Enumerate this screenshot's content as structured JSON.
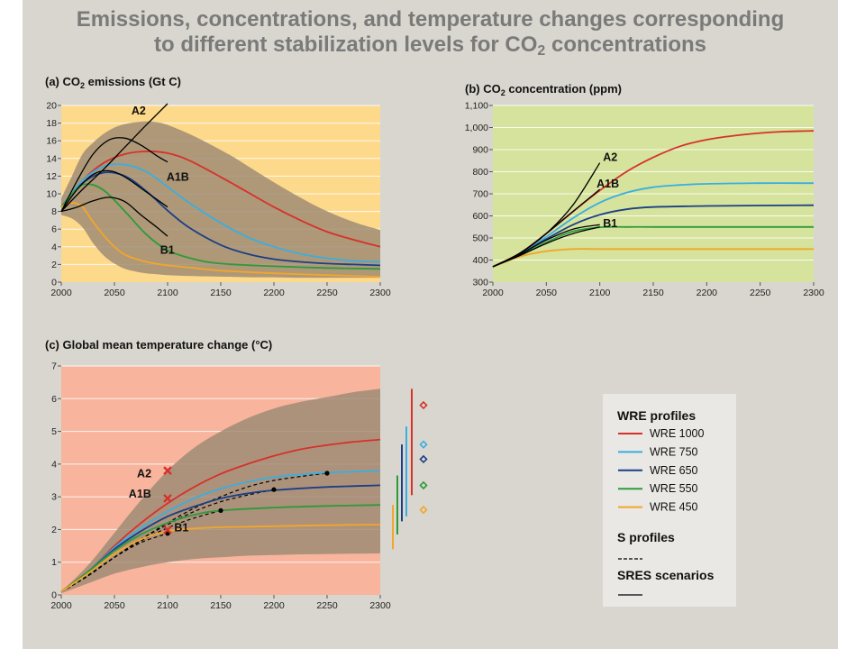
{
  "title": {
    "line1": "Emissions, concentrations, and temperature changes corresponding",
    "line2_pre": "to different stabilization levels for CO",
    "line2_sub": "2",
    "line2_post": " concentrations"
  },
  "colors": {
    "background": "#d8d6ce",
    "panel_a_bg": "#fdd98b",
    "panel_b_bg": "#d5e39c",
    "panel_c_bg": "#f8b49c",
    "uncertainty_band": "#9c8a74",
    "wre1000": "#d6312b",
    "wre750": "#3aaee0",
    "wre650": "#1b3f86",
    "wre550": "#2d9a3c",
    "wre450": "#f2a62a",
    "sres": "#000000"
  },
  "legend": {
    "wre_title": "WRE profiles",
    "items": [
      {
        "label": "WRE 1000",
        "color": "#d6312b"
      },
      {
        "label": "WRE 750",
        "color": "#3aaee0"
      },
      {
        "label": "WRE 650",
        "color": "#1b3f86"
      },
      {
        "label": "WRE 550",
        "color": "#2d9a3c"
      },
      {
        "label": "WRE 450",
        "color": "#f2a62a"
      }
    ],
    "s_title": "S profiles",
    "sres_title": "SRES scenarios"
  },
  "chart_data": [
    {
      "id": "a",
      "type": "line",
      "title_pre": "(a) CO",
      "title_sub": "2",
      "title_post": " emissions (Gt C)",
      "xlim": [
        2000,
        2300
      ],
      "ylim": [
        0,
        20
      ],
      "xticks": [
        "2000",
        "2050",
        "2100",
        "2150",
        "2200",
        "2250",
        "2300"
      ],
      "yticks": [
        "0",
        "2",
        "4",
        "6",
        "8",
        "10",
        "12",
        "14",
        "16",
        "18",
        "20"
      ],
      "band": {
        "x": [
          2000,
          2010,
          2020,
          2030,
          2040,
          2050,
          2060,
          2070,
          2080,
          2090,
          2100,
          2120,
          2140,
          2160,
          2180,
          2200,
          2220,
          2240,
          2260,
          2280,
          2300
        ],
        "upper": [
          9.5,
          12,
          14.5,
          15.8,
          16.8,
          17.5,
          17.9,
          18.1,
          18.2,
          18.1,
          17.8,
          16.8,
          15.6,
          14.3,
          12.8,
          11.3,
          9.9,
          8.6,
          7.5,
          6.6,
          5.9
        ],
        "lower": [
          7.6,
          7.2,
          6.2,
          4.4,
          3,
          2.1,
          1.5,
          1.2,
          1,
          0.9,
          0.8,
          0.7,
          0.65,
          0.6,
          0.55,
          0.55,
          0.5,
          0.5,
          0.5,
          0.5,
          0.5
        ]
      },
      "series": [
        {
          "name": "WRE 1000",
          "color": "#d6312b",
          "x": [
            2000,
            2020,
            2040,
            2060,
            2080,
            2100,
            2120,
            2150,
            2175,
            2200,
            2225,
            2250,
            2275,
            2300
          ],
          "y": [
            8.5,
            11.5,
            13.5,
            14.5,
            14.8,
            14.6,
            13.8,
            11.9,
            10.2,
            8.5,
            7,
            5.7,
            4.8,
            4
          ]
        },
        {
          "name": "WRE 750",
          "color": "#3aaee0",
          "x": [
            2000,
            2020,
            2040,
            2060,
            2080,
            2100,
            2120,
            2150,
            2175,
            2200,
            2225,
            2250,
            2275,
            2300
          ],
          "y": [
            8.5,
            11.5,
            13.1,
            13.3,
            12.5,
            10.8,
            9,
            6.7,
            5.1,
            4,
            3.2,
            2.7,
            2.4,
            2.3
          ]
        },
        {
          "name": "WRE 650",
          "color": "#1b3f86",
          "x": [
            2000,
            2020,
            2040,
            2060,
            2080,
            2100,
            2120,
            2150,
            2175,
            2200,
            2225,
            2250,
            2275,
            2300
          ],
          "y": [
            8.5,
            11.2,
            12.4,
            12,
            10.3,
            8.1,
            6.2,
            4.2,
            3.2,
            2.6,
            2.3,
            2.1,
            2,
            1.9
          ]
        },
        {
          "name": "WRE 550",
          "color": "#2d9a3c",
          "x": [
            2000,
            2015,
            2025,
            2040,
            2060,
            2080,
            2100,
            2125,
            2150,
            2200,
            2250,
            2300
          ],
          "y": [
            8.5,
            10.6,
            11.1,
            10.4,
            8,
            5.4,
            3.6,
            2.6,
            2.1,
            1.8,
            1.6,
            1.5
          ]
        },
        {
          "name": "WRE 450",
          "color": "#f2a62a",
          "x": [
            2000,
            2010,
            2020,
            2030,
            2045,
            2060,
            2080,
            2100,
            2125,
            2150,
            2200,
            2250,
            2300
          ],
          "y": [
            8.5,
            9,
            8.5,
            6.8,
            4.6,
            3.1,
            2.3,
            1.9,
            1.6,
            1.3,
            1,
            0.8,
            0.6
          ]
        },
        {
          "name": "A2",
          "color": "#000000",
          "x": [
            2000,
            2020,
            2040,
            2060,
            2080,
            2100
          ],
          "y": [
            8,
            10.5,
            12.8,
            15.3,
            17.8,
            20.2
          ]
        },
        {
          "name": "A1B",
          "color": "#000000",
          "x": [
            2000,
            2015,
            2030,
            2045,
            2060,
            2075,
            2090,
            2100
          ],
          "y": [
            8,
            11.5,
            14.5,
            16.1,
            16.3,
            15.5,
            14.3,
            13.6
          ]
        },
        {
          "name": "",
          "color": "#000000",
          "x": [
            2000,
            2015,
            2030,
            2045,
            2060,
            2080,
            2100
          ],
          "y": [
            8,
            10.5,
            12.2,
            12.6,
            11.9,
            10.2,
            8.5
          ]
        },
        {
          "name": "B1",
          "color": "#000000",
          "x": [
            2000,
            2015,
            2030,
            2045,
            2060,
            2075,
            2090,
            2100
          ],
          "y": [
            8,
            8.5,
            9.2,
            9.6,
            9.1,
            7.6,
            6.2,
            5.2
          ]
        }
      ],
      "labels": [
        {
          "text": "A2",
          "x": 2066,
          "y": 19.4
        },
        {
          "text": "A1B",
          "x": 2099,
          "y": 11.9
        },
        {
          "text": "B1",
          "x": 2093,
          "y": 3.6
        }
      ]
    },
    {
      "id": "b",
      "type": "line",
      "title_pre": "(b) CO",
      "title_sub": "2",
      "title_post": " concentration (ppm)",
      "xlim": [
        2000,
        2300
      ],
      "ylim": [
        300,
        1100
      ],
      "xticks": [
        "2000",
        "2050",
        "2100",
        "2150",
        "2200",
        "2250",
        "2300"
      ],
      "yticks": [
        "300",
        "400",
        "500",
        "600",
        "700",
        "800",
        "900",
        "1,000",
        "1,100"
      ],
      "series": [
        {
          "name": "WRE 1000",
          "color": "#d6312b",
          "x": [
            2000,
            2025,
            2050,
            2075,
            2100,
            2125,
            2150,
            2175,
            2200,
            2225,
            2250,
            2275,
            2300
          ],
          "y": [
            370,
            430,
            520,
            620,
            715,
            800,
            865,
            915,
            945,
            963,
            975,
            982,
            985
          ]
        },
        {
          "name": "WRE 750",
          "color": "#3aaee0",
          "x": [
            2000,
            2025,
            2050,
            2075,
            2100,
            2125,
            2150,
            2175,
            2200,
            2250,
            2300
          ],
          "y": [
            370,
            425,
            505,
            590,
            660,
            705,
            730,
            740,
            745,
            748,
            748
          ]
        },
        {
          "name": "WRE 650",
          "color": "#1b3f86",
          "x": [
            2000,
            2025,
            2050,
            2075,
            2100,
            2125,
            2150,
            2200,
            2250,
            2300
          ],
          "y": [
            370,
            425,
            495,
            560,
            605,
            630,
            640,
            645,
            647,
            648
          ]
        },
        {
          "name": "WRE 550",
          "color": "#2d9a3c",
          "x": [
            2000,
            2025,
            2050,
            2075,
            2100,
            2125,
            2150,
            2200,
            2300
          ],
          "y": [
            370,
            420,
            480,
            530,
            548,
            550,
            550,
            550,
            550
          ]
        },
        {
          "name": "WRE 450",
          "color": "#f2a62a",
          "x": [
            2000,
            2025,
            2050,
            2075,
            2100,
            2150,
            2200,
            2250,
            2300
          ],
          "y": [
            370,
            415,
            440,
            450,
            450,
            450,
            450,
            450,
            450
          ]
        },
        {
          "name": "A2",
          "color": "#000000",
          "x": [
            2000,
            2025,
            2050,
            2075,
            2100
          ],
          "y": [
            370,
            430,
            520,
            650,
            840
          ]
        },
        {
          "name": "A1B",
          "color": "#000000",
          "x": [
            2000,
            2025,
            2050,
            2075,
            2100
          ],
          "y": [
            370,
            430,
            520,
            620,
            720
          ]
        },
        {
          "name": "",
          "color": "#000000",
          "x": [
            2000,
            2025,
            2050,
            2075,
            2100
          ],
          "y": [
            370,
            425,
            490,
            540,
            560
          ]
        },
        {
          "name": "B1",
          "color": "#000000",
          "x": [
            2000,
            2025,
            2050,
            2075,
            2100
          ],
          "y": [
            370,
            420,
            475,
            520,
            550
          ]
        }
      ],
      "labels": [
        {
          "text": "A2",
          "x": 2103,
          "y": 865
        },
        {
          "text": "A1B",
          "x": 2097,
          "y": 745
        },
        {
          "text": "B1",
          "x": 2103,
          "y": 565
        }
      ]
    },
    {
      "id": "c",
      "type": "line",
      "title": "(c) Global mean temperature change (°C)",
      "xlim": [
        2000,
        2300
      ],
      "ylim": [
        0,
        7
      ],
      "xticks": [
        "2000",
        "2050",
        "2100",
        "2150",
        "2200",
        "2250",
        "2300"
      ],
      "yticks": [
        "0",
        "1",
        "2",
        "3",
        "4",
        "5",
        "6",
        "7"
      ],
      "band": {
        "x": [
          2000,
          2025,
          2050,
          2075,
          2100,
          2125,
          2150,
          2175,
          2200,
          2225,
          2250,
          2275,
          2300
        ],
        "upper": [
          0.1,
          0.9,
          1.9,
          2.9,
          3.8,
          4.5,
          5,
          5.4,
          5.7,
          5.9,
          6.05,
          6.2,
          6.3
        ],
        "lower": [
          0.05,
          0.35,
          0.65,
          0.85,
          1,
          1.1,
          1.15,
          1.2,
          1.22,
          1.24,
          1.25,
          1.26,
          1.27
        ]
      },
      "series": [
        {
          "name": "WRE 1000",
          "color": "#d6312b",
          "x": [
            2000,
            2025,
            2050,
            2075,
            2100,
            2125,
            2150,
            2175,
            2200,
            2225,
            2250,
            2275,
            2300
          ],
          "y": [
            0.1,
            0.7,
            1.5,
            2.2,
            2.8,
            3.3,
            3.7,
            4,
            4.25,
            4.45,
            4.58,
            4.68,
            4.75
          ]
        },
        {
          "name": "WRE 750",
          "color": "#3aaee0",
          "x": [
            2000,
            2025,
            2050,
            2075,
            2100,
            2125,
            2150,
            2175,
            2200,
            2225,
            2250,
            2275,
            2300
          ],
          "y": [
            0.1,
            0.7,
            1.45,
            2.05,
            2.55,
            2.95,
            3.25,
            3.45,
            3.6,
            3.68,
            3.74,
            3.77,
            3.8
          ]
        },
        {
          "name": "WRE 650",
          "color": "#1b3f86",
          "x": [
            2000,
            2025,
            2050,
            2075,
            2100,
            2125,
            2150,
            2175,
            2200,
            2250,
            2300
          ],
          "y": [
            0.1,
            0.7,
            1.4,
            1.95,
            2.4,
            2.7,
            2.95,
            3.1,
            3.2,
            3.3,
            3.35
          ]
        },
        {
          "name": "WRE 550",
          "color": "#2d9a3c",
          "x": [
            2000,
            2025,
            2050,
            2075,
            2100,
            2125,
            2150,
            2200,
            2250,
            2300
          ],
          "y": [
            0.1,
            0.7,
            1.35,
            1.85,
            2.2,
            2.45,
            2.58,
            2.67,
            2.72,
            2.75
          ]
        },
        {
          "name": "WRE 450",
          "color": "#f2a62a",
          "x": [
            2000,
            2025,
            2050,
            2075,
            2100,
            2125,
            2150,
            2200,
            2250,
            2300
          ],
          "y": [
            0.1,
            0.65,
            1.25,
            1.7,
            1.95,
            2.03,
            2.07,
            2.1,
            2.13,
            2.15
          ]
        }
      ],
      "s_profiles": [
        {
          "x": [
            2000,
            2025,
            2050,
            2075,
            2100
          ],
          "y": [
            0.1,
            0.6,
            1.15,
            1.6,
            1.88
          ]
        },
        {
          "x": [
            2000,
            2025,
            2050,
            2075,
            2100,
            2125,
            2150
          ],
          "y": [
            0.1,
            0.58,
            1.15,
            1.65,
            2.05,
            2.35,
            2.58
          ]
        },
        {
          "x": [
            2000,
            2025,
            2050,
            2075,
            2100,
            2125,
            2150,
            2175,
            2200
          ],
          "y": [
            0.1,
            0.58,
            1.15,
            1.7,
            2.15,
            2.55,
            2.85,
            3.05,
            3.22
          ]
        },
        {
          "x": [
            2000,
            2025,
            2050,
            2075,
            2100,
            2125,
            2150,
            2175,
            2200,
            2225,
            2250
          ],
          "y": [
            0.1,
            0.58,
            1.15,
            1.7,
            2.2,
            2.65,
            3,
            3.3,
            3.5,
            3.62,
            3.72
          ]
        }
      ],
      "s_endpoints": [
        {
          "x": 2100,
          "y": 1.88
        },
        {
          "x": 2150,
          "y": 2.58
        },
        {
          "x": 2200,
          "y": 3.22
        },
        {
          "x": 2250,
          "y": 3.72
        }
      ],
      "sres_markers": [
        {
          "label": "A2",
          "x": 2100,
          "y": 3.8,
          "label_x": 2078,
          "label_y": 3.7
        },
        {
          "label": "A1B",
          "x": 2100,
          "y": 2.95,
          "label_x": 2074,
          "label_y": 3.08
        },
        {
          "label": "B1",
          "x": 2100,
          "y": 1.99,
          "label_x": 2113,
          "label_y": 2.05
        }
      ],
      "equilibrium_ranges": [
        {
          "color": "#d6312b",
          "low": 3.05,
          "high": 6.3,
          "best": 5.8
        },
        {
          "color": "#3aaee0",
          "low": 2.4,
          "high": 5.15,
          "best": 4.6
        },
        {
          "color": "#1b3f86",
          "low": 2.25,
          "high": 4.6,
          "best": 4.15
        },
        {
          "color": "#2d9a3c",
          "low": 1.85,
          "high": 3.65,
          "best": 3.35
        },
        {
          "color": "#f2a62a",
          "low": 1.4,
          "high": 2.75,
          "best": 2.6
        }
      ]
    }
  ]
}
